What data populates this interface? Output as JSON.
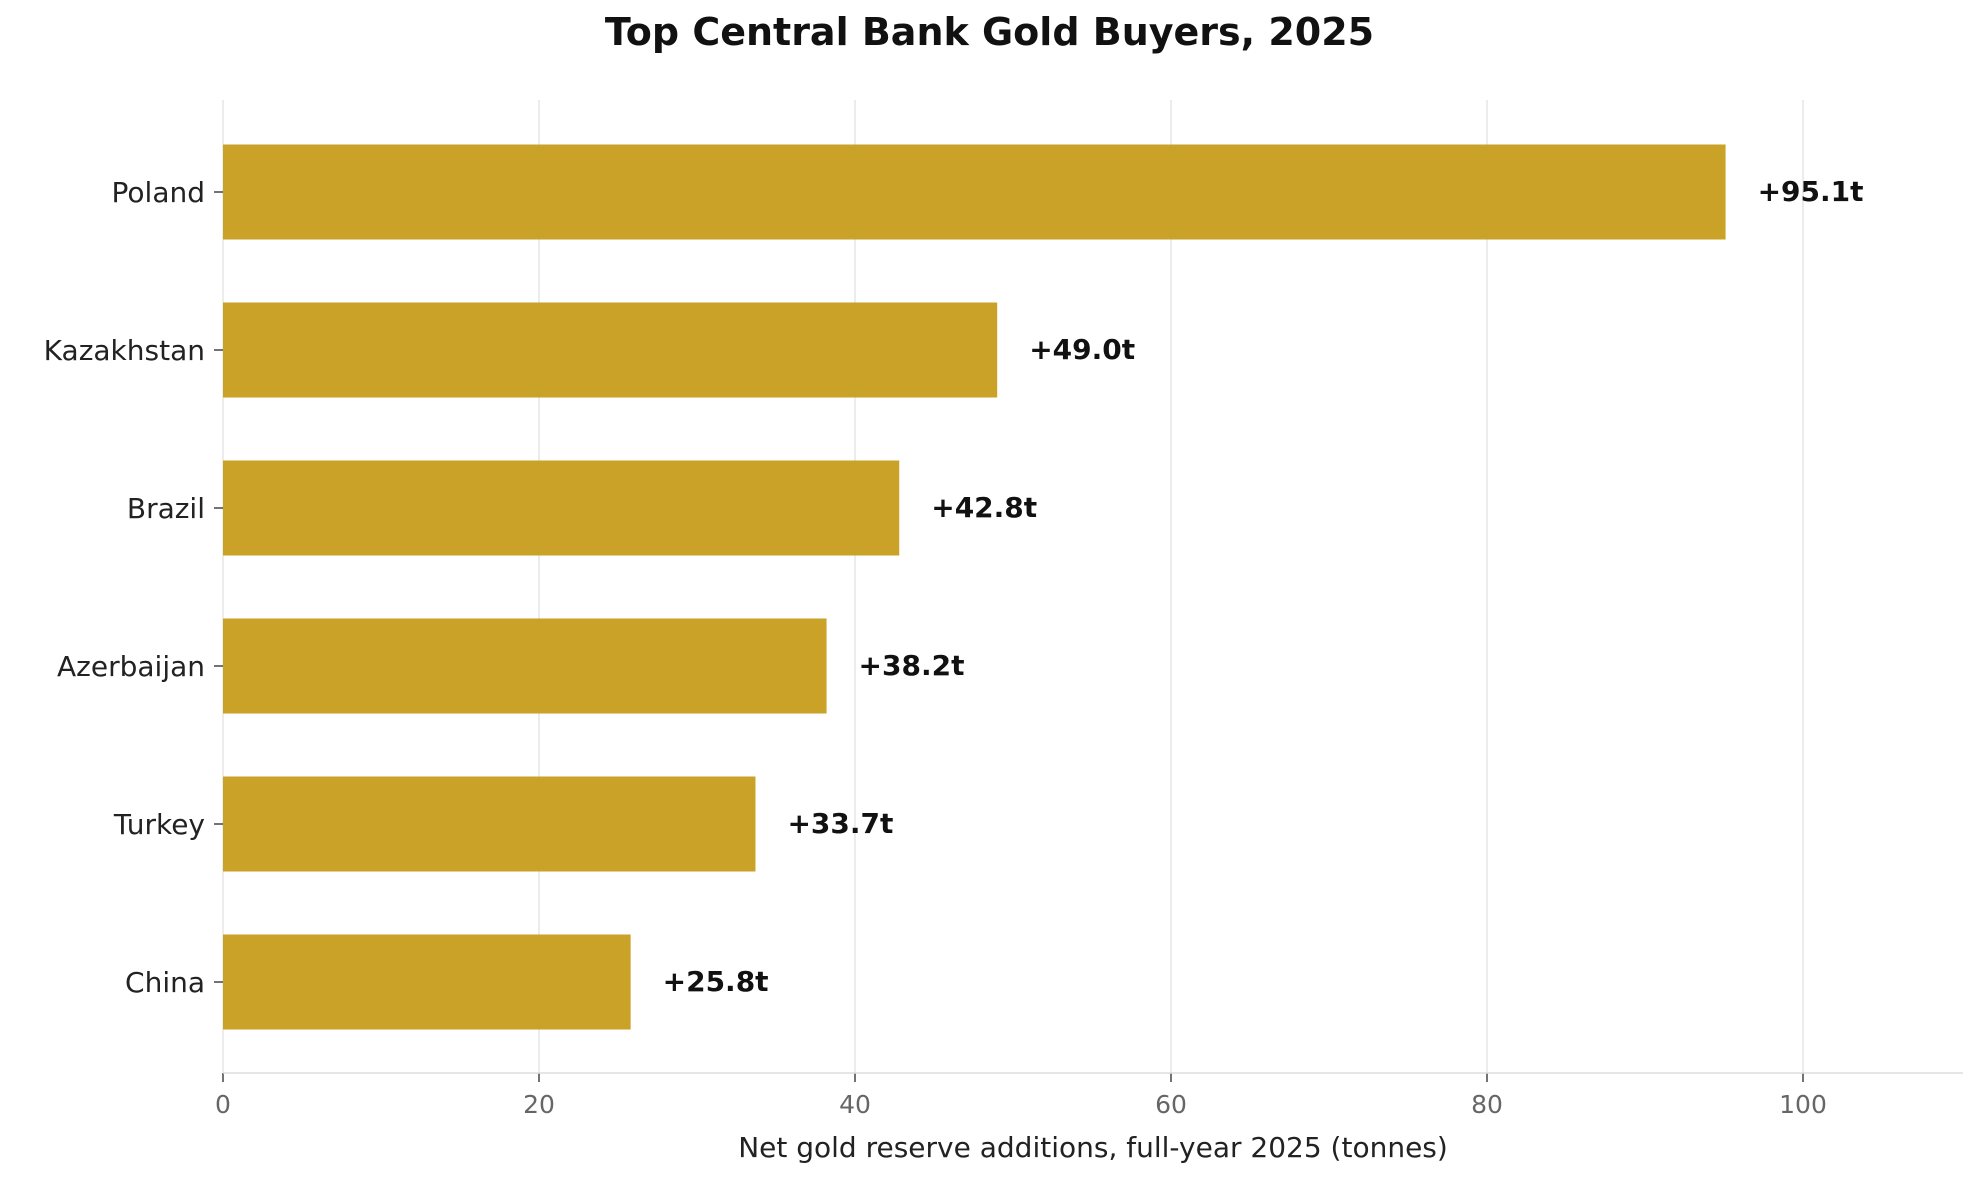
{
  "chart_data": {
    "type": "bar",
    "orientation": "horizontal",
    "title": "Top Central Bank Gold Buyers, 2025",
    "xlabel": "Net gold reserve additions, full-year 2025 (tonnes)",
    "ylabel": "",
    "categories": [
      "Poland",
      "Kazakhstan",
      "Brazil",
      "Azerbaijan",
      "Turkey",
      "China"
    ],
    "values": [
      95.1,
      49.0,
      42.8,
      38.2,
      33.7,
      25.8
    ],
    "data_labels": [
      "+95.1t",
      "+49.0t",
      "+42.8t",
      "+38.2t",
      "+33.7t",
      "+25.8t"
    ],
    "xlim": [
      0,
      110
    ],
    "xticks": [
      0,
      20,
      40,
      60,
      80,
      100
    ],
    "xtick_labels": [
      "0",
      "20",
      "40",
      "60",
      "80",
      "100"
    ],
    "grid": "vertical",
    "legend": "none",
    "bar_color": "#C9A227",
    "grid_color": "#E6E6E6"
  }
}
